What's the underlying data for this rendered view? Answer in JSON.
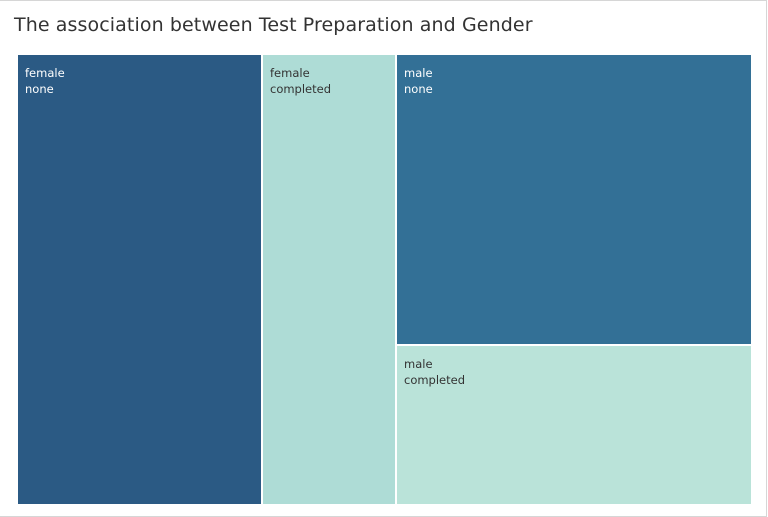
{
  "title": "The association between Test Preparation and Gender",
  "colors": {
    "female_none": "#2b5a84",
    "female_completed": "#aedcd6",
    "male_none": "#337096",
    "male_completed": "#bae3d9",
    "label_dark_bg": "#ffffff",
    "label_light_bg": "#333333"
  },
  "chart_data": {
    "type": "treemap",
    "title": "The association between Test Preparation and Gender",
    "groups": [
      {
        "gender": "female",
        "cells": [
          {
            "gender": "female",
            "test_preparation": "none",
            "share": 0.33,
            "color": "#2b5a84"
          },
          {
            "gender": "female",
            "test_preparation": "completed",
            "share": 0.18,
            "color": "#aedcd6"
          }
        ]
      },
      {
        "gender": "male",
        "cells": [
          {
            "gender": "male",
            "test_preparation": "none",
            "share": 0.31,
            "color": "#337096"
          },
          {
            "gender": "male",
            "test_preparation": "completed",
            "share": 0.17,
            "color": "#bae3d9"
          }
        ]
      }
    ]
  }
}
